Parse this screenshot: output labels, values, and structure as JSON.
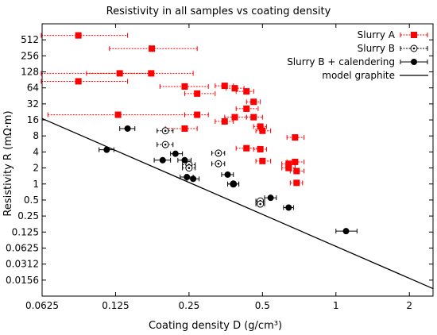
{
  "chart_data": {
    "type": "scatter",
    "title": "Resistivity in all samples vs coating density",
    "xlabel": "Coating density D (g/cm³)",
    "ylabel": "Resistivity R (mΩ·m)",
    "x_scale": "log2",
    "y_scale": "log2",
    "xlim": [
      0.0625,
      2.5
    ],
    "ylim": [
      0.0078125,
      1024
    ],
    "x_ticks": [
      "0.0625",
      "0.125",
      "0.25",
      "0.5",
      "1",
      "2"
    ],
    "y_ticks": [
      "0.0156",
      "0.0312",
      "0.0625",
      "0.125",
      "0.25",
      "0.5",
      "1",
      "2",
      "4",
      "8",
      "16",
      "32",
      "64",
      "128",
      "256",
      "512"
    ],
    "legend_position": "top-right",
    "series": [
      {
        "name": "Slurry A",
        "color": "#ff0000",
        "marker": "square",
        "points": [
          {
            "x": 0.088,
            "y": 620,
            "xerr": [
              0.062,
              0.14
            ]
          },
          {
            "x": 0.176,
            "y": 350,
            "xerr": [
              0.118,
              0.27
            ]
          },
          {
            "x": 0.088,
            "y": 85,
            "xerr": [
              0.062,
              0.14
            ]
          },
          {
            "x": 0.13,
            "y": 120,
            "xerr": [
              0.062,
              0.175
            ]
          },
          {
            "x": 0.175,
            "y": 120,
            "xerr": [
              0.095,
              0.26
            ]
          },
          {
            "x": 0.24,
            "y": 68,
            "xerr": [
              0.19,
              0.3
            ]
          },
          {
            "x": 0.27,
            "y": 50,
            "xerr": [
              0.24,
              0.32
            ]
          },
          {
            "x": 0.128,
            "y": 20,
            "xerr": [
              0.066,
              0.24
            ]
          },
          {
            "x": 0.27,
            "y": 20,
            "xerr": [
              0.24,
              0.3
            ]
          },
          {
            "x": 0.24,
            "y": 11,
            "xerr": [
              0.2,
              0.27
            ]
          },
          {
            "x": 0.35,
            "y": 70,
            "xerr": [
              0.32,
              0.38
            ]
          },
          {
            "x": 0.385,
            "y": 63,
            "xerr": [
              0.355,
              0.42
            ]
          },
          {
            "x": 0.43,
            "y": 55,
            "xerr": [
              0.39,
              0.46
            ]
          },
          {
            "x": 0.46,
            "y": 35,
            "xerr": [
              0.43,
              0.49
            ]
          },
          {
            "x": 0.43,
            "y": 26,
            "xerr": [
              0.39,
              0.48
            ]
          },
          {
            "x": 0.46,
            "y": 18,
            "xerr": [
              0.43,
              0.5
            ]
          },
          {
            "x": 0.385,
            "y": 18,
            "xerr": [
              0.35,
              0.43
            ]
          },
          {
            "x": 0.35,
            "y": 15,
            "xerr": [
              0.32,
              0.38
            ]
          },
          {
            "x": 0.49,
            "y": 12,
            "xerr": [
              0.46,
              0.52
            ]
          },
          {
            "x": 0.5,
            "y": 10,
            "xerr": [
              0.47,
              0.54
            ]
          },
          {
            "x": 0.68,
            "y": 7.5,
            "xerr": [
              0.63,
              0.74
            ]
          },
          {
            "x": 0.43,
            "y": 4.7,
            "xerr": [
              0.39,
              0.48
            ]
          },
          {
            "x": 0.49,
            "y": 4.5,
            "xerr": [
              0.46,
              0.52
            ]
          },
          {
            "x": 0.5,
            "y": 2.7,
            "xerr": [
              0.47,
              0.54
            ]
          },
          {
            "x": 0.64,
            "y": 2.4,
            "xerr": [
              0.6,
              0.68
            ]
          },
          {
            "x": 0.68,
            "y": 2.6,
            "xerr": [
              0.63,
              0.74
            ]
          },
          {
            "x": 0.64,
            "y": 2.0,
            "xerr": [
              0.6,
              0.68
            ]
          },
          {
            "x": 0.69,
            "y": 1.75,
            "xerr": [
              0.65,
              0.74
            ]
          },
          {
            "x": 0.69,
            "y": 1.05,
            "xerr": [
              0.65,
              0.73
            ]
          }
        ]
      },
      {
        "name": "Slurry B",
        "color": "#000000",
        "marker": "open-circle-dot",
        "points": [
          {
            "x": 0.2,
            "y": 10,
            "xerr": [
              0.185,
              0.215
            ]
          },
          {
            "x": 0.2,
            "y": 5.5,
            "xerr": [
              0.185,
              0.215
            ]
          },
          {
            "x": 0.25,
            "y": 2.3,
            "xerr": [
              0.235,
              0.265
            ]
          },
          {
            "x": 0.25,
            "y": 2.0,
            "xerr": [
              0.235,
              0.265
            ]
          },
          {
            "x": 0.33,
            "y": 3.8,
            "xerr": [
              0.31,
              0.35
            ]
          },
          {
            "x": 0.33,
            "y": 2.4,
            "xerr": [
              0.31,
              0.35
            ]
          },
          {
            "x": 0.38,
            "y": 1.0,
            "xerr": [
              0.36,
              0.4
            ]
          },
          {
            "x": 0.49,
            "y": 0.48,
            "xerr": [
              0.47,
              0.51
            ]
          },
          {
            "x": 0.49,
            "y": 0.42,
            "xerr": [
              0.47,
              0.51
            ]
          }
        ]
      },
      {
        "name": "Slurry B + calendering",
        "color": "#000000",
        "marker": "filled-circle",
        "points": [
          {
            "x": 0.14,
            "y": 11,
            "xerr": [
              0.13,
              0.15
            ]
          },
          {
            "x": 0.115,
            "y": 4.4,
            "xerr": [
              0.107,
              0.123
            ]
          },
          {
            "x": 0.22,
            "y": 3.7,
            "xerr": [
              0.21,
              0.235
            ]
          },
          {
            "x": 0.195,
            "y": 2.8,
            "xerr": [
              0.18,
              0.21
            ]
          },
          {
            "x": 0.24,
            "y": 2.8,
            "xerr": [
              0.225,
              0.255
            ]
          },
          {
            "x": 0.245,
            "y": 1.35,
            "xerr": [
              0.23,
              0.26
            ]
          },
          {
            "x": 0.26,
            "y": 1.25,
            "xerr": [
              0.245,
              0.275
            ]
          },
          {
            "x": 0.36,
            "y": 1.5,
            "xerr": [
              0.34,
              0.38
            ]
          },
          {
            "x": 0.38,
            "y": 1.0,
            "xerr": [
              0.36,
              0.4
            ]
          },
          {
            "x": 0.54,
            "y": 0.55,
            "xerr": [
              0.51,
              0.57
            ]
          },
          {
            "x": 0.64,
            "y": 0.36,
            "xerr": [
              0.61,
              0.67
            ]
          },
          {
            "x": 1.1,
            "y": 0.13,
            "xerr": [
              1.0,
              1.22
            ]
          }
        ]
      },
      {
        "name": "model graphite",
        "color": "#000000",
        "marker": "line",
        "points": [
          {
            "x": 0.0625,
            "y": 17
          },
          {
            "x": 2.5,
            "y": 0.0108
          }
        ]
      }
    ]
  }
}
